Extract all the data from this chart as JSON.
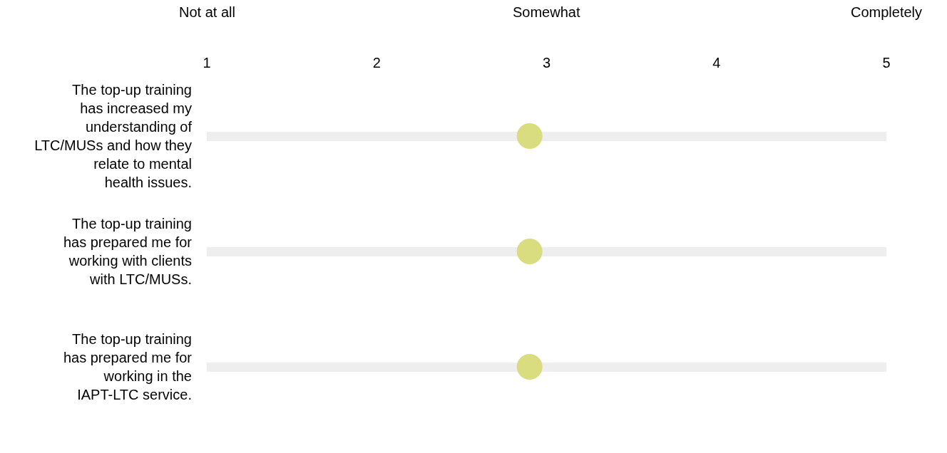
{
  "chart_data": {
    "type": "scatter",
    "orientation": "horizontal",
    "categories": [
      "The top-up training has increased my understanding of LTC/MUSs and how they relate to mental health issues.",
      "The top-up training has prepared me for working with clients with LTC/MUSs.",
      "The top-up training has prepared me for working in the IAPT-LTC service."
    ],
    "series": [
      {
        "color": "#d9dd80",
        "values": [
          2.9,
          2.9,
          2.9
        ]
      }
    ],
    "xlim": [
      1,
      5
    ],
    "xticks": [
      1,
      2,
      3,
      4,
      5
    ],
    "annotations": [
      "Not at all",
      "Somewhat",
      "Completely"
    ],
    "grid": "y",
    "marker": "circle",
    "legend": false
  }
}
